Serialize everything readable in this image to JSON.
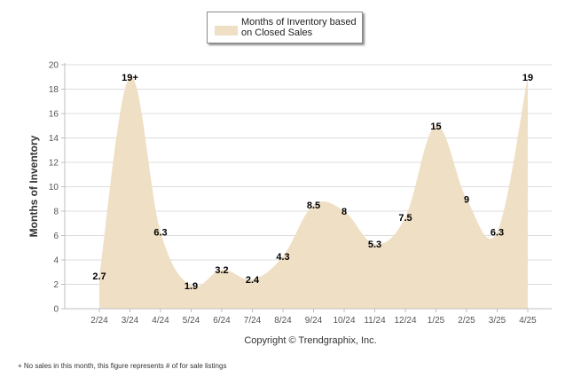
{
  "legend": {
    "label": "Months of Inventory based on Closed Sales"
  },
  "copyright": "Copyright © Trendgraphix, Inc.",
  "footnote": "+ No sales in this month, this figure represents # of for sale listings",
  "colors": {
    "fill": "#efdfc4",
    "axis": "#bfbfbf",
    "grid": "#dcdcdc"
  },
  "chart_data": {
    "type": "area",
    "categories": [
      "2/24",
      "3/24",
      "4/24",
      "5/24",
      "6/24",
      "7/24",
      "8/24",
      "9/24",
      "10/24",
      "11/24",
      "12/24",
      "1/25",
      "2/25",
      "3/25",
      "4/25"
    ],
    "series": [
      {
        "name": "Months of Inventory based on Closed Sales",
        "values": [
          2.7,
          19,
          6.3,
          1.9,
          3.2,
          2.4,
          4.3,
          8.5,
          8,
          5.3,
          7.5,
          15,
          9,
          6.3,
          19
        ],
        "labels": [
          "2.7",
          "19+",
          "6.3",
          "1.9",
          "3.2",
          "2.4",
          "4.3",
          "8.5",
          "8",
          "5.3",
          "7.5",
          "15",
          "9",
          "6.3",
          "19"
        ]
      }
    ],
    "ylabel": "Months of Inventory",
    "ylim": [
      0,
      20
    ],
    "yticks": [
      "0",
      "2",
      "4",
      "6",
      "8",
      "10",
      "12",
      "14",
      "16",
      "18",
      "20"
    ],
    "grid": true,
    "legend_position": "top-center",
    "smooth": true
  }
}
